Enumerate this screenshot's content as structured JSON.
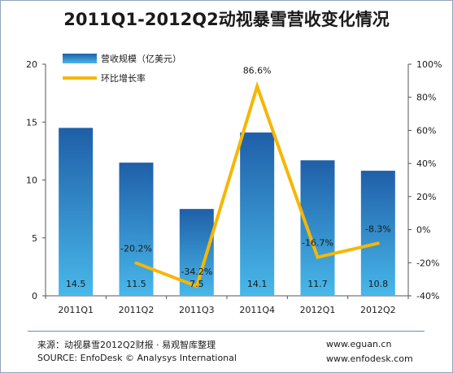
{
  "chart_data": {
    "type": "bar",
    "title": "2011Q1-2012Q2动视暴雪营收变化情况",
    "categories": [
      "2011Q1",
      "2011Q2",
      "2011Q3",
      "2011Q4",
      "2012Q1",
      "2012Q2"
    ],
    "series": [
      {
        "name": "营收规模（亿美元）",
        "type": "bar",
        "axis": "left",
        "values": [
          14.5,
          11.5,
          7.5,
          14.1,
          11.7,
          10.8
        ]
      },
      {
        "name": "环比增长率",
        "type": "line",
        "axis": "right",
        "values": [
          null,
          -20.2,
          -34.2,
          86.6,
          -16.7,
          -8.3
        ]
      }
    ],
    "left_axis": {
      "min": 0,
      "max": 20,
      "step": 5,
      "ticks": [
        "0",
        "5",
        "10",
        "15",
        "20"
      ]
    },
    "right_axis": {
      "min": -40,
      "max": 100,
      "step": 20,
      "ticks": [
        "-40%",
        "-20%",
        "0%",
        "20%",
        "40%",
        "60%",
        "80%",
        "100%"
      ]
    },
    "bar_labels": [
      "14.5",
      "11.5",
      "7.5",
      "14.1",
      "11.7",
      "10.8"
    ],
    "line_labels": [
      "",
      "-20.2%",
      "-34.2%",
      "86.6%",
      "-16.7%",
      "-8.3%"
    ],
    "legend_placement": "top-left",
    "colors": {
      "bar_top": "#1f5fa8",
      "bar_bottom": "#48b8ea",
      "line": "#f7b600"
    },
    "grid": false
  },
  "footer": {
    "source_cn": "来源：动视暴雪2012Q2财报 · 易观智库整理",
    "source_en": "SOURCE: EnfoDesk © Analysys International",
    "website_1": "www.eguan.cn",
    "website_2": "www.enfodesk.com"
  }
}
